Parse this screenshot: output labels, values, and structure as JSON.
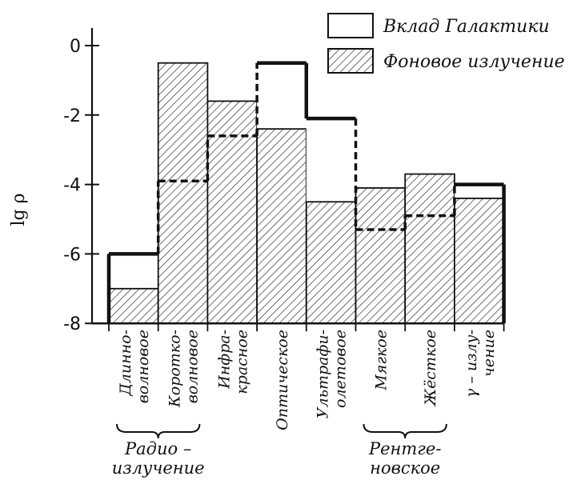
{
  "chart_data": {
    "type": "bar",
    "title": "",
    "xlabel": "",
    "ylabel": "lg ρ",
    "ylim": [
      -8,
      1
    ],
    "yticks": [
      {
        "value": 0,
        "label": "0"
      },
      {
        "value": -2,
        "label": "-2"
      },
      {
        "value": -4,
        "label": "-4"
      },
      {
        "value": -6,
        "label": "-6"
      },
      {
        "value": -8,
        "label": "-8"
      }
    ],
    "categories": [
      {
        "lines": [
          "Длинно-",
          "волновое"
        ]
      },
      {
        "lines": [
          "Коротко-",
          "волновое"
        ]
      },
      {
        "lines": [
          "Инфра-",
          "красное"
        ]
      },
      {
        "lines": [
          "Оптическое"
        ]
      },
      {
        "lines": [
          "Ультрафи-",
          "олетовое"
        ]
      },
      {
        "lines": [
          "Мягкое"
        ]
      },
      {
        "lines": [
          "Жёсткое"
        ]
      },
      {
        "lines": [
          "γ – излу-",
          "чение"
        ]
      }
    ],
    "groups": [
      {
        "lines": [
          "Радио –",
          "излучение"
        ],
        "from": 0,
        "to": 1
      },
      {
        "lines": [
          "Рентге-",
          "новское"
        ],
        "from": 5,
        "to": 6
      }
    ],
    "series": [
      {
        "name": "Вклад Галактики",
        "style": "white",
        "values": [
          -6.0,
          -3.9,
          -2.6,
          -0.5,
          -2.1,
          -5.3,
          -4.9,
          -4.0
        ]
      },
      {
        "name": "Фоновое излучение",
        "style": "hatched",
        "values": [
          -7.0,
          -0.5,
          -1.6,
          -2.4,
          -4.5,
          -4.1,
          -3.7,
          -4.4
        ]
      }
    ],
    "legend_position": "top-right",
    "grid": false
  }
}
